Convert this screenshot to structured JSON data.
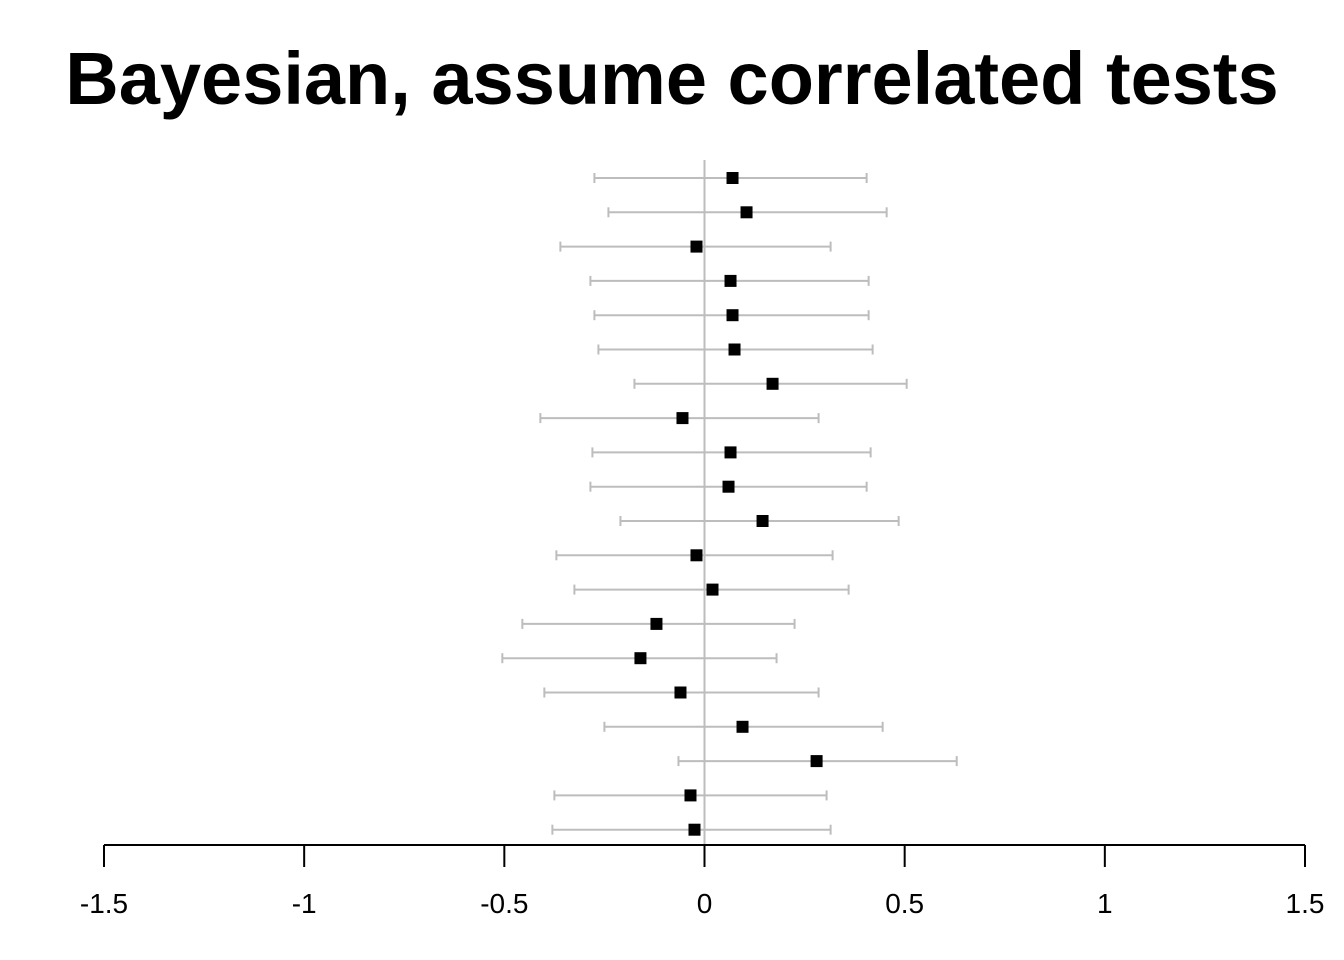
{
  "chart_data": {
    "type": "forest",
    "title": "Bayesian, assume correlated tests",
    "xlabel": "",
    "ylabel": "",
    "xlim": [
      -1.5,
      1.5
    ],
    "x_ticks": [
      -1.5,
      -1,
      -0.5,
      0,
      0.5,
      1,
      1.5
    ],
    "x_tick_labels": [
      "-1.5",
      "-1",
      "-0.5",
      "0",
      "0.5",
      "1",
      "1.5"
    ],
    "reference_line": 0,
    "grid": false,
    "point_color": "#000000",
    "interval_color": "#bdbdbd",
    "estimates": [
      {
        "est": 0.07,
        "lo": -0.275,
        "hi": 0.405
      },
      {
        "est": 0.105,
        "lo": -0.24,
        "hi": 0.455
      },
      {
        "est": -0.02,
        "lo": -0.36,
        "hi": 0.315
      },
      {
        "est": 0.065,
        "lo": -0.285,
        "hi": 0.41
      },
      {
        "est": 0.07,
        "lo": -0.275,
        "hi": 0.41
      },
      {
        "est": 0.075,
        "lo": -0.265,
        "hi": 0.42
      },
      {
        "est": 0.17,
        "lo": -0.175,
        "hi": 0.505
      },
      {
        "est": -0.055,
        "lo": -0.41,
        "hi": 0.285
      },
      {
        "est": 0.065,
        "lo": -0.28,
        "hi": 0.415
      },
      {
        "est": 0.06,
        "lo": -0.285,
        "hi": 0.405
      },
      {
        "est": 0.145,
        "lo": -0.21,
        "hi": 0.485
      },
      {
        "est": -0.02,
        "lo": -0.37,
        "hi": 0.32
      },
      {
        "est": 0.02,
        "lo": -0.325,
        "hi": 0.36
      },
      {
        "est": -0.12,
        "lo": -0.455,
        "hi": 0.225
      },
      {
        "est": -0.16,
        "lo": -0.505,
        "hi": 0.18
      },
      {
        "est": -0.06,
        "lo": -0.4,
        "hi": 0.285
      },
      {
        "est": 0.095,
        "lo": -0.25,
        "hi": 0.445
      },
      {
        "est": 0.28,
        "lo": -0.065,
        "hi": 0.63
      },
      {
        "est": -0.035,
        "lo": -0.375,
        "hi": 0.305
      },
      {
        "est": -0.025,
        "lo": -0.38,
        "hi": 0.315
      }
    ]
  }
}
